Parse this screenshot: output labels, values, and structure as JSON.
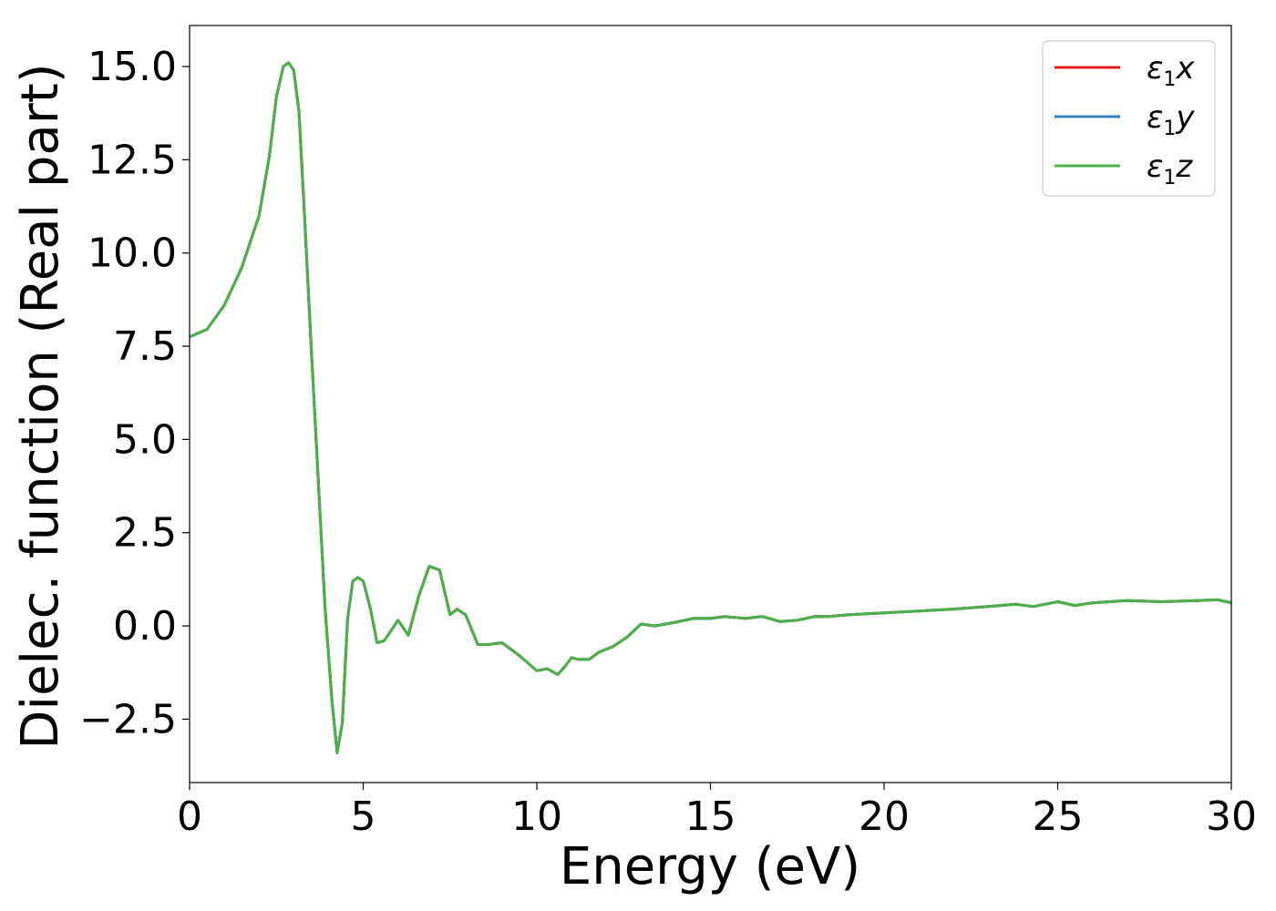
{
  "chart_data": {
    "type": "line",
    "xlabel": "Energy (eV)",
    "ylabel": "Dielec. function (Real part)",
    "xlim": [
      0,
      30
    ],
    "ylim": [
      -4.2,
      16.1
    ],
    "xticks": [
      0,
      5,
      10,
      15,
      20,
      25,
      30
    ],
    "xtick_labels": [
      "0",
      "5",
      "10",
      "15",
      "20",
      "25",
      "30"
    ],
    "yticks": [
      -2.5,
      0.0,
      2.5,
      5.0,
      7.5,
      10.0,
      12.5,
      15.0
    ],
    "ytick_labels": [
      "−2.5",
      "0.0",
      "2.5",
      "5.0",
      "7.5",
      "10.0",
      "12.5",
      "15.0"
    ],
    "grid": false,
    "legend_position": "top-right",
    "series": [
      {
        "name": "ε₁x",
        "legend_main": "ε",
        "legend_sub": "1",
        "legend_var": "x",
        "color": "#e41a1c",
        "x": [
          0.0,
          0.5,
          1.0,
          1.5,
          2.0,
          2.3,
          2.5,
          2.7,
          2.85,
          3.0,
          3.15,
          3.3,
          3.5,
          3.7,
          3.9,
          4.1,
          4.25,
          4.4,
          4.55,
          4.7,
          4.85,
          5.0,
          5.2,
          5.4,
          5.6,
          5.75,
          6.0,
          6.3,
          6.6,
          6.9,
          7.2,
          7.5,
          7.7,
          7.95,
          8.3,
          8.6,
          9.0,
          9.5,
          10.0,
          10.3,
          10.6,
          10.8,
          11.0,
          11.2,
          11.5,
          11.8,
          12.2,
          12.6,
          13.0,
          13.4,
          14.0,
          14.5,
          15.0,
          15.4,
          16.0,
          16.5,
          17.0,
          17.5,
          18.0,
          18.4,
          19.0,
          20.0,
          21.0,
          22.0,
          23.0,
          23.8,
          24.3,
          25.0,
          25.5,
          26.0,
          27.0,
          28.0,
          29.0,
          29.6,
          30.0
        ],
        "values": [
          7.75,
          7.95,
          8.6,
          9.6,
          11.0,
          12.6,
          14.2,
          15.0,
          15.1,
          14.9,
          13.8,
          11.2,
          7.5,
          4.0,
          0.5,
          -2.0,
          -3.4,
          -2.6,
          0.2,
          1.2,
          1.3,
          1.2,
          0.5,
          -0.45,
          -0.4,
          -0.2,
          0.15,
          -0.25,
          0.8,
          1.6,
          1.5,
          0.3,
          0.45,
          0.3,
          -0.5,
          -0.5,
          -0.45,
          -0.8,
          -1.2,
          -1.15,
          -1.3,
          -1.1,
          -0.85,
          -0.9,
          -0.9,
          -0.7,
          -0.55,
          -0.3,
          0.05,
          0.0,
          0.1,
          0.2,
          0.2,
          0.25,
          0.2,
          0.25,
          0.12,
          0.15,
          0.25,
          0.25,
          0.3,
          0.35,
          0.4,
          0.45,
          0.52,
          0.58,
          0.52,
          0.65,
          0.55,
          0.62,
          0.68,
          0.65,
          0.68,
          0.7,
          0.62
        ]
      },
      {
        "name": "ε₁y",
        "legend_main": "ε",
        "legend_sub": "1",
        "legend_var": "y",
        "color": "#377eb8",
        "x": [
          0.0,
          0.5,
          1.0,
          1.5,
          2.0,
          2.3,
          2.5,
          2.7,
          2.85,
          3.0,
          3.15,
          3.3,
          3.5,
          3.7,
          3.9,
          4.1,
          4.25,
          4.4,
          4.55,
          4.7,
          4.85,
          5.0,
          5.2,
          5.4,
          5.6,
          5.75,
          6.0,
          6.3,
          6.6,
          6.9,
          7.2,
          7.5,
          7.7,
          7.95,
          8.3,
          8.6,
          9.0,
          9.5,
          10.0,
          10.3,
          10.6,
          10.8,
          11.0,
          11.2,
          11.5,
          11.8,
          12.2,
          12.6,
          13.0,
          13.4,
          14.0,
          14.5,
          15.0,
          15.4,
          16.0,
          16.5,
          17.0,
          17.5,
          18.0,
          18.4,
          19.0,
          20.0,
          21.0,
          22.0,
          23.0,
          23.8,
          24.3,
          25.0,
          25.5,
          26.0,
          27.0,
          28.0,
          29.0,
          29.6,
          30.0
        ],
        "values": [
          7.75,
          7.95,
          8.6,
          9.6,
          11.0,
          12.6,
          14.2,
          15.0,
          15.1,
          14.9,
          13.8,
          11.2,
          7.5,
          4.0,
          0.5,
          -2.0,
          -3.4,
          -2.6,
          0.2,
          1.2,
          1.3,
          1.2,
          0.5,
          -0.45,
          -0.4,
          -0.2,
          0.15,
          -0.25,
          0.8,
          1.6,
          1.5,
          0.3,
          0.45,
          0.3,
          -0.5,
          -0.5,
          -0.45,
          -0.8,
          -1.2,
          -1.15,
          -1.3,
          -1.1,
          -0.85,
          -0.9,
          -0.9,
          -0.7,
          -0.55,
          -0.3,
          0.05,
          0.0,
          0.1,
          0.2,
          0.2,
          0.25,
          0.2,
          0.25,
          0.12,
          0.15,
          0.25,
          0.25,
          0.3,
          0.35,
          0.4,
          0.45,
          0.52,
          0.58,
          0.52,
          0.65,
          0.55,
          0.62,
          0.68,
          0.65,
          0.68,
          0.7,
          0.62
        ]
      },
      {
        "name": "ε₁z",
        "legend_main": "ε",
        "legend_sub": "1",
        "legend_var": "z",
        "color": "#4daf4a",
        "x": [
          0.0,
          0.5,
          1.0,
          1.5,
          2.0,
          2.3,
          2.5,
          2.7,
          2.85,
          3.0,
          3.15,
          3.3,
          3.5,
          3.7,
          3.9,
          4.1,
          4.25,
          4.4,
          4.55,
          4.7,
          4.85,
          5.0,
          5.2,
          5.4,
          5.6,
          5.75,
          6.0,
          6.3,
          6.6,
          6.9,
          7.2,
          7.5,
          7.7,
          7.95,
          8.3,
          8.6,
          9.0,
          9.5,
          10.0,
          10.3,
          10.6,
          10.8,
          11.0,
          11.2,
          11.5,
          11.8,
          12.2,
          12.6,
          13.0,
          13.4,
          14.0,
          14.5,
          15.0,
          15.4,
          16.0,
          16.5,
          17.0,
          17.5,
          18.0,
          18.4,
          19.0,
          20.0,
          21.0,
          22.0,
          23.0,
          23.8,
          24.3,
          25.0,
          25.5,
          26.0,
          27.0,
          28.0,
          29.0,
          29.6,
          30.0
        ],
        "values": [
          7.75,
          7.95,
          8.6,
          9.6,
          11.0,
          12.6,
          14.2,
          15.0,
          15.1,
          14.9,
          13.8,
          11.2,
          7.5,
          4.0,
          0.5,
          -2.0,
          -3.4,
          -2.6,
          0.2,
          1.2,
          1.3,
          1.2,
          0.5,
          -0.45,
          -0.4,
          -0.2,
          0.15,
          -0.25,
          0.8,
          1.6,
          1.5,
          0.3,
          0.45,
          0.3,
          -0.5,
          -0.5,
          -0.45,
          -0.8,
          -1.2,
          -1.15,
          -1.3,
          -1.1,
          -0.85,
          -0.9,
          -0.9,
          -0.7,
          -0.55,
          -0.3,
          0.05,
          0.0,
          0.1,
          0.2,
          0.2,
          0.25,
          0.2,
          0.25,
          0.12,
          0.15,
          0.25,
          0.25,
          0.3,
          0.35,
          0.4,
          0.45,
          0.52,
          0.58,
          0.52,
          0.65,
          0.55,
          0.62,
          0.68,
          0.65,
          0.68,
          0.7,
          0.62
        ]
      }
    ]
  }
}
